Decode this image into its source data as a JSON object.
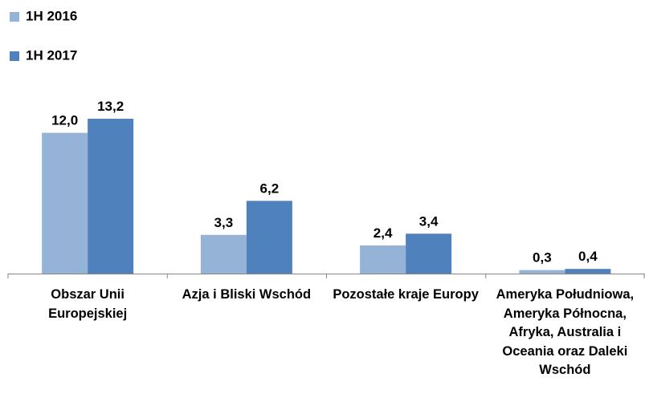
{
  "chart_data": {
    "type": "bar",
    "categories": [
      "Obszar Unii Europejskiej",
      "Azja i Bliski Wschód",
      "Pozostałe kraje Europy",
      "Ameryka Południowa, Ameryka Północna, Afryka, Australia i Oceania oraz Daleki Wschód"
    ],
    "series": [
      {
        "name": "1H 2016",
        "color": "#95b3d7",
        "values": [
          12.0,
          3.3,
          2.4,
          0.3
        ],
        "value_labels": [
          "12,0",
          "3,3",
          "2,4",
          "0,3"
        ]
      },
      {
        "name": "1H 2017",
        "color": "#4f81bd",
        "values": [
          13.2,
          6.2,
          3.4,
          0.4
        ],
        "value_labels": [
          "13,2",
          "6,2",
          "3,4",
          "0,4"
        ]
      }
    ]
  }
}
